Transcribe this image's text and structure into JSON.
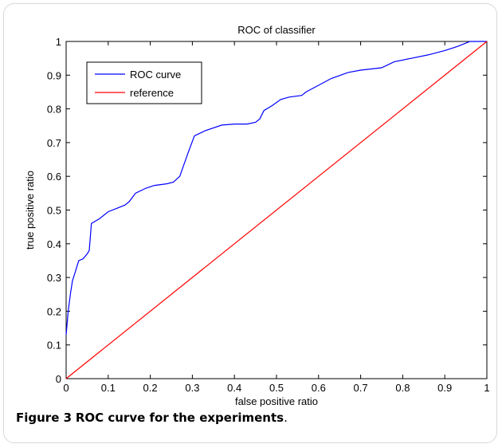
{
  "chart_data": {
    "type": "line",
    "title": "ROC of classifier",
    "xlabel": "false positive ratio",
    "ylabel": "true positive ratio",
    "xlim": [
      0,
      1
    ],
    "ylim": [
      0,
      1
    ],
    "xticks": [
      "0",
      "0.1",
      "0.2",
      "0.3",
      "0.4",
      "0.5",
      "0.6",
      "0.7",
      "0.8",
      "0.9",
      "1"
    ],
    "yticks": [
      "0",
      "0.1",
      "0.2",
      "0.3",
      "0.4",
      "0.5",
      "0.6",
      "0.7",
      "0.8",
      "0.9",
      "1"
    ],
    "grid": false,
    "legend": "top-left",
    "series": [
      {
        "name": "ROC curve",
        "color": "#0000ff",
        "x": [
          0,
          0.005,
          0.01,
          0.015,
          0.02,
          0.03,
          0.04,
          0.05,
          0.055,
          0.06,
          0.08,
          0.1,
          0.12,
          0.14,
          0.15,
          0.165,
          0.19,
          0.21,
          0.24,
          0.255,
          0.27,
          0.29,
          0.305,
          0.33,
          0.37,
          0.4,
          0.43,
          0.45,
          0.46,
          0.47,
          0.49,
          0.51,
          0.53,
          0.56,
          0.57,
          0.6,
          0.63,
          0.67,
          0.7,
          0.75,
          0.78,
          0.82,
          0.86,
          0.9,
          0.93,
          0.95,
          0.96,
          1
        ],
        "y": [
          0.13,
          0.2,
          0.25,
          0.29,
          0.31,
          0.35,
          0.355,
          0.37,
          0.38,
          0.46,
          0.475,
          0.495,
          0.505,
          0.515,
          0.525,
          0.55,
          0.565,
          0.573,
          0.578,
          0.583,
          0.6,
          0.67,
          0.72,
          0.735,
          0.752,
          0.755,
          0.755,
          0.76,
          0.77,
          0.795,
          0.81,
          0.828,
          0.835,
          0.84,
          0.85,
          0.87,
          0.89,
          0.908,
          0.915,
          0.922,
          0.94,
          0.95,
          0.96,
          0.973,
          0.985,
          0.995,
          1,
          1
        ]
      },
      {
        "name": "reference",
        "color": "#ff0000",
        "x": [
          0,
          1
        ],
        "y": [
          0,
          1
        ]
      }
    ]
  },
  "caption": {
    "label": "Figure 3",
    "text": "ROC curve for the experiments",
    "suffix": "."
  }
}
